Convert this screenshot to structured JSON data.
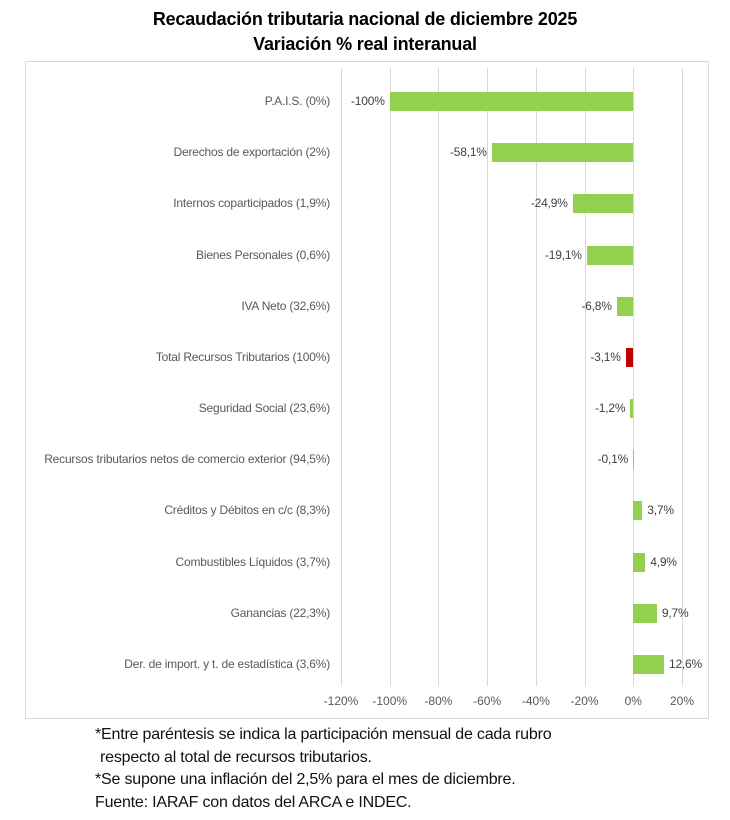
{
  "title": {
    "line1": "Recaudación tributaria nacional de diciembre 2025",
    "line2": "Variación % real interanual"
  },
  "chart_data": {
    "type": "bar",
    "orientation": "horizontal",
    "title": "Recaudación tributaria nacional de diciembre 2025",
    "subtitle": "Variación % real interanual",
    "categories": [
      "P.A.I.S. (0%)",
      "Derechos de exportación (2%)",
      "Internos coparticipados (1,9%)",
      "Bienes Personales (0,6%)",
      "IVA Neto (32,6%)",
      "Total Recursos Tributarios (100%)",
      "Seguridad Social (23,6%)",
      "Recursos tributarios netos de comercio exterior (94,5%)",
      "Créditos y Débitos en c/c (8,3%)",
      "Combustibles Líquidos (3,7%)",
      "Ganancias (22,3%)",
      "Der. de import. y t. de estadística (3,6%)"
    ],
    "values": [
      -100,
      -58.1,
      -24.9,
      -19.1,
      -6.8,
      -3.1,
      -1.2,
      -0.1,
      3.7,
      4.9,
      9.7,
      12.6
    ],
    "value_labels": [
      "-100%",
      "-58,1%",
      "-24,9%",
      "-19,1%",
      "-6,8%",
      "-3,1%",
      "-1,2%",
      "-0,1%",
      "3,7%",
      "4,9%",
      "9,7%",
      "12,6%"
    ],
    "bar_colors": [
      "#92D050",
      "#92D050",
      "#92D050",
      "#92D050",
      "#92D050",
      "#C00000",
      "#92D050",
      "#92D050",
      "#92D050",
      "#92D050",
      "#92D050",
      "#92D050"
    ],
    "highlight_category": "Total Recursos Tributarios (100%)",
    "xlim": [
      -120,
      20
    ],
    "x_tick_values": [
      -120,
      -100,
      -80,
      -60,
      -40,
      -20,
      0,
      20
    ],
    "x_tick_labels": [
      "-120%",
      "-100%",
      "-80%",
      "-60%",
      "-40%",
      "-20%",
      "0%",
      "20%"
    ],
    "grid": "vertical",
    "legend": "none",
    "colors": {
      "bar_green": "#92D050",
      "bar_red": "#C00000",
      "gridline": "#D9D9D9",
      "category_label": "#595959",
      "value_label": "#404040"
    }
  },
  "footnotes": [
    "*Entre paréntesis se indica la participación mensual de cada rubro",
    "respecto al total de recursos tributarios.",
    "*Se supone una inflación del 2,5% para el mes de diciembre.",
    "Fuente: IARAF con datos del ARCA e INDEC."
  ]
}
